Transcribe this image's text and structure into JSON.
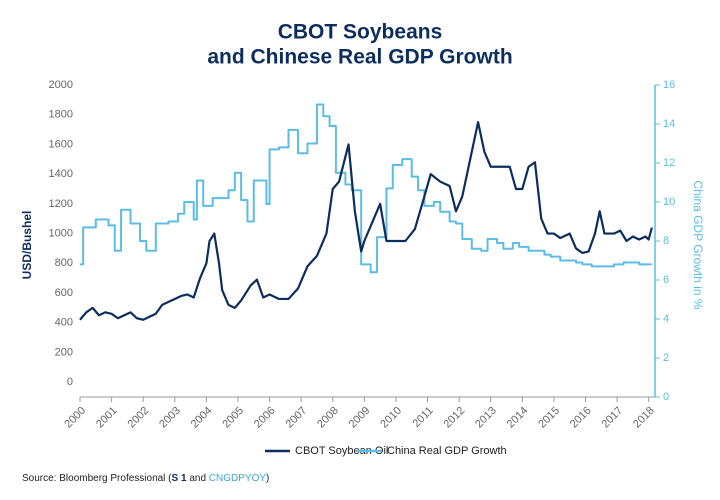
{
  "chart_data": {
    "type": "line",
    "title": [
      "CBOT Soybeans",
      "and Chinese Real GDP Growth"
    ],
    "ylabel": "USD/Bushel",
    "y2label": "China GDP Growth in %",
    "xlim": [
      2000,
      2018.2
    ],
    "xticks": [
      2000,
      2001,
      2002,
      2003,
      2004,
      2005,
      2006,
      2007,
      2008,
      2009,
      2010,
      2011,
      2012,
      2013,
      2014,
      2015,
      2016,
      2017,
      2018
    ],
    "ylim": [
      -100,
      2000
    ],
    "yticks": [
      0,
      200,
      400,
      600,
      800,
      1000,
      1200,
      1400,
      1600,
      1800,
      2000
    ],
    "y2lim": [
      0,
      16
    ],
    "y2ticks": [
      0,
      2,
      4,
      6,
      8,
      10,
      12,
      14,
      16
    ],
    "series": [
      {
        "name": "CBOT Soybean Oil",
        "color": "#0d2d5e",
        "step": false,
        "x": [
          2000.0,
          2000.2,
          2000.4,
          2000.6,
          2000.8,
          2001.0,
          2001.2,
          2001.4,
          2001.6,
          2001.8,
          2002.0,
          2002.2,
          2002.4,
          2002.6,
          2002.8,
          2003.0,
          2003.2,
          2003.4,
          2003.6,
          2003.8,
          2004.0,
          2004.1,
          2004.25,
          2004.4,
          2004.5,
          2004.7,
          2004.9,
          2005.1,
          2005.4,
          2005.6,
          2005.8,
          2006.0,
          2006.3,
          2006.6,
          2006.9,
          2007.2,
          2007.5,
          2007.8,
          2008.0,
          2008.2,
          2008.5,
          2008.7,
          2008.9,
          2009.0,
          2009.3,
          2009.5,
          2009.7,
          2010.0,
          2010.3,
          2010.6,
          2010.9,
          2011.1,
          2011.4,
          2011.7,
          2011.9,
          2012.1,
          2012.3,
          2012.6,
          2012.8,
          2013.0,
          2013.3,
          2013.6,
          2013.8,
          2014.0,
          2014.2,
          2014.4,
          2014.6,
          2014.8,
          2015.0,
          2015.2,
          2015.5,
          2015.7,
          2015.9,
          2016.1,
          2016.3,
          2016.45,
          2016.6,
          2016.9,
          2017.1,
          2017.3,
          2017.5,
          2017.7,
          2017.9,
          2018.0,
          2018.1
        ],
        "values": [
          420,
          470,
          500,
          450,
          470,
          460,
          430,
          450,
          470,
          430,
          420,
          440,
          460,
          520,
          540,
          560,
          580,
          590,
          570,
          700,
          800,
          950,
          1000,
          800,
          620,
          520,
          500,
          550,
          650,
          690,
          570,
          590,
          560,
          560,
          630,
          780,
          850,
          1000,
          1300,
          1350,
          1600,
          1150,
          880,
          950,
          1100,
          1200,
          950,
          950,
          950,
          1030,
          1250,
          1400,
          1350,
          1320,
          1150,
          1250,
          1450,
          1750,
          1550,
          1450,
          1450,
          1450,
          1300,
          1300,
          1450,
          1480,
          1100,
          1000,
          1000,
          970,
          1000,
          900,
          870,
          880,
          1000,
          1150,
          1000,
          1000,
          1020,
          950,
          980,
          960,
          980,
          960,
          1040
        ]
      },
      {
        "name": "China Real GDP Growth",
        "color": "#5bbde4",
        "axis": "y2",
        "step": true,
        "x": [
          2000.0,
          2000.1,
          2000.5,
          2000.9,
          2001.1,
          2001.3,
          2001.6,
          2001.9,
          2002.1,
          2002.4,
          2002.8,
          2003.1,
          2003.3,
          2003.6,
          2003.7,
          2003.9,
          2004.2,
          2004.7,
          2004.9,
          2005.1,
          2005.3,
          2005.5,
          2005.9,
          2006.0,
          2006.3,
          2006.6,
          2006.9,
          2007.2,
          2007.5,
          2007.7,
          2007.9,
          2008.1,
          2008.4,
          2008.6,
          2008.9,
          2009.2,
          2009.4,
          2009.7,
          2009.9,
          2010.2,
          2010.5,
          2010.7,
          2010.9,
          2011.2,
          2011.4,
          2011.7,
          2011.9,
          2012.1,
          2012.4,
          2012.7,
          2012.9,
          2013.2,
          2013.4,
          2013.7,
          2013.9,
          2014.2,
          2014.4,
          2014.7,
          2014.9,
          2015.2,
          2015.4,
          2015.7,
          2015.9,
          2016.2,
          2016.4,
          2016.7,
          2016.9,
          2017.2,
          2017.4,
          2017.7,
          2017.9,
          2018.1
        ],
        "values": [
          6.8,
          8.7,
          9.1,
          8.8,
          7.5,
          9.6,
          8.9,
          8.0,
          7.5,
          8.9,
          9.0,
          9.4,
          10.0,
          9.1,
          11.1,
          9.8,
          10.2,
          10.6,
          11.5,
          10.1,
          9.0,
          11.1,
          9.9,
          12.7,
          12.8,
          13.7,
          12.5,
          13.0,
          15.0,
          14.4,
          13.9,
          11.5,
          10.9,
          10.6,
          6.8,
          6.4,
          8.2,
          10.7,
          11.9,
          12.2,
          11.3,
          10.6,
          9.8,
          10.0,
          9.5,
          9.0,
          8.9,
          8.1,
          7.6,
          7.5,
          8.1,
          7.9,
          7.6,
          7.9,
          7.7,
          7.5,
          7.5,
          7.3,
          7.2,
          7.0,
          7.0,
          6.9,
          6.8,
          6.7,
          6.7,
          6.7,
          6.8,
          6.9,
          6.9,
          6.8,
          6.8,
          6.8
        ]
      }
    ],
    "source": [
      "Source: Bloomberg Professional (",
      "S 1",
      " and ",
      "CNGDPYOY",
      ")"
    ]
  }
}
